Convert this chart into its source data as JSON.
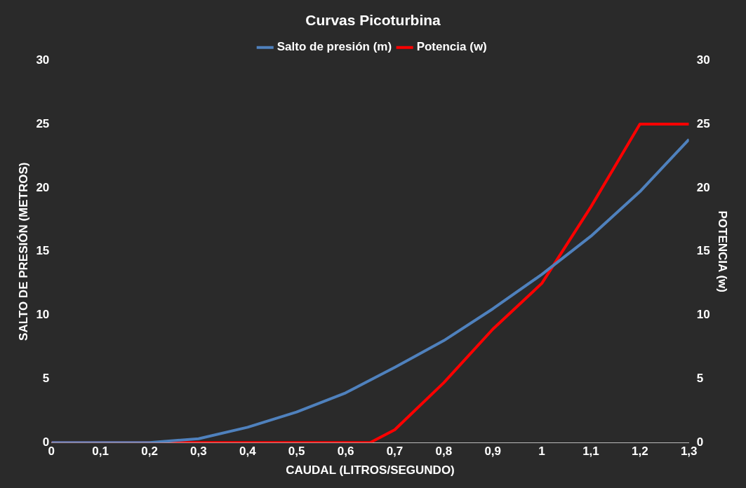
{
  "chart_data": {
    "type": "line",
    "title": "Curvas Picoturbina",
    "xlabel": "CAUDAL (LITROS/SEGUNDO)",
    "ylabel": "SALTO DE PRESIÓN (METROS)",
    "y2label": "POTENCIA (w)",
    "x": [
      0,
      0.1,
      0.2,
      0.3,
      0.4,
      0.5,
      0.6,
      0.7,
      0.8,
      0.9,
      1,
      1.1,
      1.2,
      1.3
    ],
    "series": [
      {
        "name": "Salto de presión (m)",
        "color": "#4f81bd",
        "values": [
          0,
          0,
          0,
          0.3,
          1.2,
          2.4,
          3.9,
          5.9,
          8.0,
          10.5,
          13.2,
          16.2,
          19.7,
          23.8
        ]
      },
      {
        "name": "Potencia (w)",
        "color": "#ff0000",
        "axis": "y2",
        "x": [
          0,
          0.65,
          0.7,
          0.8,
          0.9,
          1,
          1.1,
          1.2,
          1.3
        ],
        "values": [
          0,
          0,
          1.0,
          4.7,
          8.9,
          12.5,
          18.5,
          25,
          25
        ]
      }
    ],
    "xlim": [
      0,
      1.3
    ],
    "xticks": [
      0,
      {
        "value": 0.1,
        "label": "0,1"
      },
      {
        "value": 0.2,
        "label": "0,2"
      },
      {
        "value": 0.3,
        "label": "0,3"
      },
      {
        "value": 0.4,
        "label": "0,4"
      },
      {
        "value": 0.5,
        "label": "0,5"
      },
      {
        "value": 0.6,
        "label": "0,6"
      },
      {
        "value": 0.7,
        "label": "0,7"
      },
      {
        "value": 0.8,
        "label": "0,8"
      },
      {
        "value": 0.9,
        "label": "0,9"
      },
      1,
      {
        "value": 1.1,
        "label": "1,1"
      },
      {
        "value": 1.2,
        "label": "1,2"
      },
      {
        "value": 1.3,
        "label": "1,3"
      }
    ],
    "ylim": [
      0,
      30
    ],
    "yticks": [
      0,
      5,
      10,
      15,
      20,
      25,
      30
    ],
    "y2lim": [
      0,
      30
    ],
    "y2ticks": [
      0,
      5,
      10,
      15,
      20,
      25,
      30
    ],
    "grid": false,
    "legend": "top",
    "marker": "none",
    "line_style": "solid"
  }
}
